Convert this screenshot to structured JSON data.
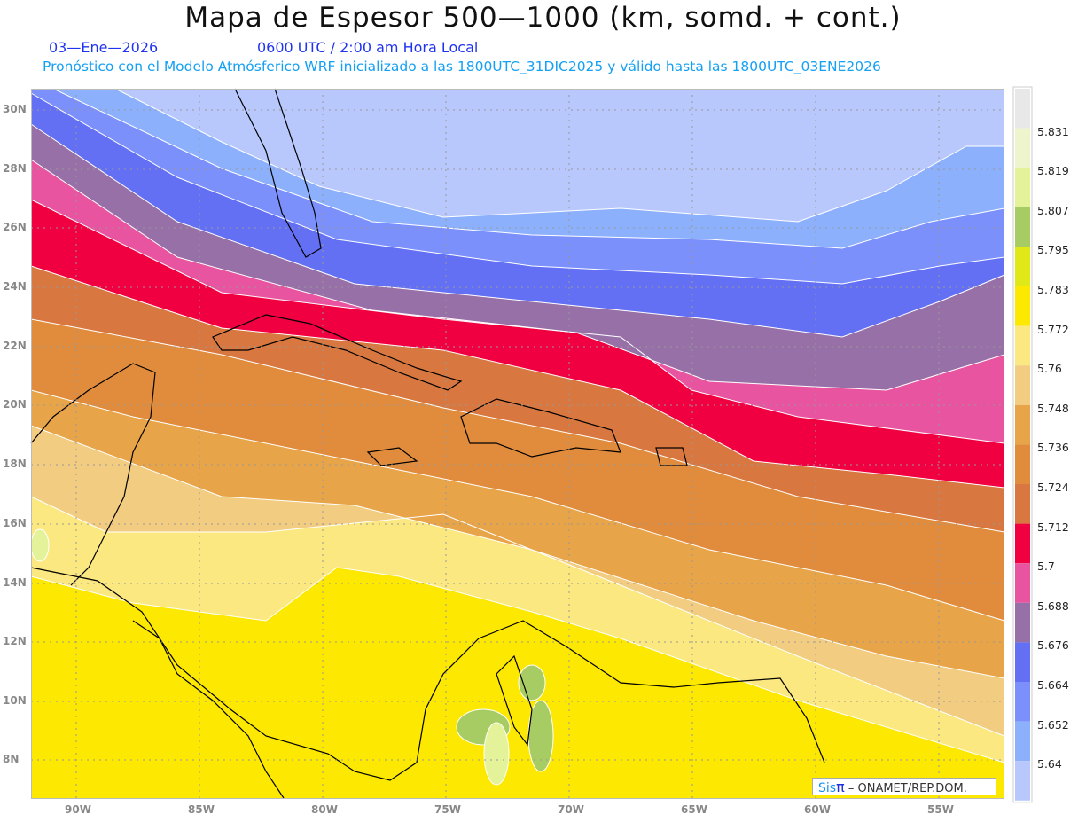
{
  "header": {
    "title": "Mapa de Espesor 500—1000 (km, somd. + cont.)",
    "date": "03—Ene—2026",
    "time": "0600 UTC / 2:00 am Hora Local",
    "info": "Pronóstico con el Modelo Atmósferico WRF inicializado a las 1800UTC_31DIC2025 y válido hasta las  1800UTC_03ENE2026"
  },
  "axes": {
    "lon_labels": [
      "90W",
      "85W",
      "80W",
      "75W",
      "70W",
      "65W",
      "60W",
      "55W"
    ],
    "lat_labels": [
      "30N",
      "28N",
      "26N",
      "24N",
      "22N",
      "20N",
      "18N",
      "16N",
      "14N",
      "12N",
      "10N",
      "8N"
    ]
  },
  "colorbar": {
    "labels": [
      "5.831",
      "5.819",
      "5.807",
      "5.795",
      "5.783",
      "5.772",
      "5.76",
      "5.748",
      "5.736",
      "5.724",
      "5.712",
      "5.7",
      "5.688",
      "5.676",
      "5.664",
      "5.652",
      "5.64"
    ],
    "colors_top_to_bottom": [
      "#e8e8e8",
      "#eef4cc",
      "#e4f29a",
      "#a8cc64",
      "#e0e818",
      "#fce800",
      "#fce880",
      "#f2cc80",
      "#e8a448",
      "#e08c3c",
      "#d87840",
      "#f00040",
      "#e854a0",
      "#9870a8",
      "#6470f4",
      "#7c90fc",
      "#8cb0fc",
      "#b8c8fc"
    ]
  },
  "credit": {
    "sis": "Sis",
    "pi": "π",
    "text": " – ONAMET/REP.DOM."
  }
}
